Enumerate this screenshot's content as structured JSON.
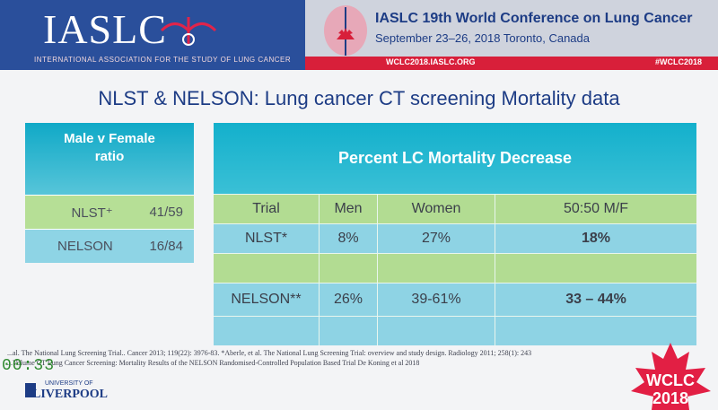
{
  "header": {
    "logo": "IASLC",
    "logo_subtitle": "INTERNATIONAL ASSOCIATION FOR THE STUDY OF LUNG CANCER",
    "conference_title": "IASLC 19th World Conference on Lung Cancer",
    "conference_dates": "September 23–26, 2018 Toronto, Canada",
    "website": "WCLC2018.IASLC.ORG",
    "hashtag": "#WCLC2018"
  },
  "slide_title": "NLST & NELSON: Lung cancer CT screening Mortality data",
  "left_table": {
    "header": [
      "Male v Female",
      "ratio"
    ],
    "rows": [
      {
        "trial": "NLST⁺",
        "ratio": "41/59"
      },
      {
        "trial": "NELSON",
        "ratio": "16/84"
      }
    ]
  },
  "right_table": {
    "header": "Percent LC Mortality Decrease",
    "columns": [
      "Trial",
      "Men",
      "Women",
      "50:50 M/F"
    ],
    "rows": [
      {
        "trial": "NLST*",
        "men": "8%",
        "women": "27%",
        "mf": "18%"
      },
      {
        "trial": "",
        "men": "",
        "women": "",
        "mf": ""
      },
      {
        "trial": "NELSON**",
        "men": "26%",
        "women": "39-61%",
        "mf": "33 – 44%"
      },
      {
        "trial": "",
        "men": "",
        "women": "",
        "mf": ""
      }
    ]
  },
  "footer": {
    "counter": "00:33",
    "ref_line1": "...al. The National Lung Screening Trial.. Cancer 2013; 119(22): 3976-83.  *Aberle, et al. The National Lung Screening Trial: overview and study design. Radiology 2011; 258(1): 243",
    "ref_line2": "...Volume CT Lung Cancer Screening: Mortality Results of the NELSON Randomised-Controlled Population Based Trial De Koning et al 2018",
    "university_small": "UNIVERSITY OF",
    "university": "LIVERPOOL",
    "wclc_text": "WCLC",
    "wclc_year": "2018"
  }
}
